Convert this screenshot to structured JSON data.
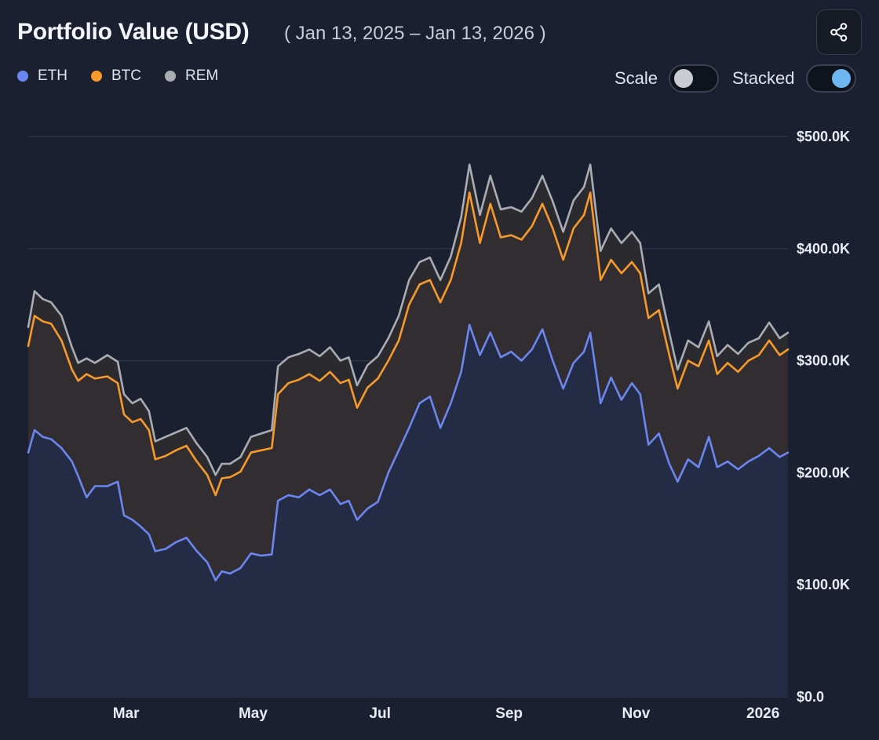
{
  "header": {
    "title": "Portfolio Value (USD)",
    "date_range": "( Jan 13, 2025 – Jan 13, 2026 )",
    "share_icon": "share-icon"
  },
  "legend": [
    {
      "label": "ETH",
      "color": "#6b86ee"
    },
    {
      "label": "BTC",
      "color": "#f79a2b"
    },
    {
      "label": "REM",
      "color": "#a9acb3"
    }
  ],
  "toggles": {
    "scale": {
      "label": "Scale",
      "on": false
    },
    "stacked": {
      "label": "Stacked",
      "on": true
    }
  },
  "chart_data": {
    "type": "area",
    "stacked": true,
    "ylim": [
      0,
      500000
    ],
    "yticks": [
      {
        "value": 0,
        "label": "$0.0"
      },
      {
        "value": 100000,
        "label": "$100.0K"
      },
      {
        "value": 200000,
        "label": "$200.0K"
      },
      {
        "value": 300000,
        "label": "$300.0K"
      },
      {
        "value": 400000,
        "label": "$400.0K"
      },
      {
        "value": 500000,
        "label": "$500.0K"
      }
    ],
    "xlim": [
      "2025-01-13",
      "2026-01-13"
    ],
    "xticks": [
      {
        "date": "2025-03-01",
        "label": "Mar"
      },
      {
        "date": "2025-05-01",
        "label": "May"
      },
      {
        "date": "2025-07-01",
        "label": "Jul"
      },
      {
        "date": "2025-09-01",
        "label": "Sep"
      },
      {
        "date": "2025-11-01",
        "label": "Nov"
      },
      {
        "date": "2026-01-01",
        "label": "2026"
      }
    ],
    "grid": true,
    "legend_position": "top-left",
    "series": [
      {
        "name": "ETH",
        "color": "#6b86ee",
        "fill": "#232b45",
        "points": [
          [
            "2025-01-13",
            218000
          ],
          [
            "2025-01-16",
            238000
          ],
          [
            "2025-01-20",
            232000
          ],
          [
            "2025-01-24",
            230000
          ],
          [
            "2025-01-29",
            222000
          ],
          [
            "2025-02-03",
            210000
          ],
          [
            "2025-02-06",
            197000
          ],
          [
            "2025-02-10",
            178000
          ],
          [
            "2025-02-14",
            188000
          ],
          [
            "2025-02-20",
            188000
          ],
          [
            "2025-02-25",
            192000
          ],
          [
            "2025-02-28",
            162000
          ],
          [
            "2025-03-04",
            158000
          ],
          [
            "2025-03-08",
            152000
          ],
          [
            "2025-03-12",
            145000
          ],
          [
            "2025-03-15",
            130000
          ],
          [
            "2025-03-20",
            132000
          ],
          [
            "2025-03-25",
            138000
          ],
          [
            "2025-03-30",
            142000
          ],
          [
            "2025-04-04",
            130000
          ],
          [
            "2025-04-09",
            120000
          ],
          [
            "2025-04-13",
            104000
          ],
          [
            "2025-04-16",
            112000
          ],
          [
            "2025-04-20",
            110000
          ],
          [
            "2025-04-25",
            115000
          ],
          [
            "2025-04-30",
            128000
          ],
          [
            "2025-05-05",
            126000
          ],
          [
            "2025-05-10",
            127000
          ],
          [
            "2025-05-13",
            175000
          ],
          [
            "2025-05-18",
            180000
          ],
          [
            "2025-05-23",
            178000
          ],
          [
            "2025-05-28",
            185000
          ],
          [
            "2025-06-02",
            180000
          ],
          [
            "2025-06-07",
            185000
          ],
          [
            "2025-06-12",
            172000
          ],
          [
            "2025-06-16",
            175000
          ],
          [
            "2025-06-20",
            158000
          ],
          [
            "2025-06-25",
            168000
          ],
          [
            "2025-06-30",
            174000
          ],
          [
            "2025-07-05",
            200000
          ],
          [
            "2025-07-10",
            220000
          ],
          [
            "2025-07-15",
            240000
          ],
          [
            "2025-07-20",
            262000
          ],
          [
            "2025-07-25",
            268000
          ],
          [
            "2025-07-30",
            240000
          ],
          [
            "2025-08-04",
            262000
          ],
          [
            "2025-08-09",
            290000
          ],
          [
            "2025-08-13",
            332000
          ],
          [
            "2025-08-18",
            305000
          ],
          [
            "2025-08-23",
            325000
          ],
          [
            "2025-08-28",
            303000
          ],
          [
            "2025-09-02",
            308000
          ],
          [
            "2025-09-07",
            300000
          ],
          [
            "2025-09-12",
            310000
          ],
          [
            "2025-09-17",
            328000
          ],
          [
            "2025-09-22",
            300000
          ],
          [
            "2025-09-27",
            275000
          ],
          [
            "2025-10-02",
            298000
          ],
          [
            "2025-10-07",
            308000
          ],
          [
            "2025-10-10",
            325000
          ],
          [
            "2025-10-15",
            262000
          ],
          [
            "2025-10-20",
            285000
          ],
          [
            "2025-10-25",
            265000
          ],
          [
            "2025-10-30",
            280000
          ],
          [
            "2025-11-03",
            270000
          ],
          [
            "2025-11-07",
            225000
          ],
          [
            "2025-11-12",
            235000
          ],
          [
            "2025-11-17",
            208000
          ],
          [
            "2025-11-21",
            192000
          ],
          [
            "2025-11-26",
            212000
          ],
          [
            "2025-12-01",
            205000
          ],
          [
            "2025-12-06",
            232000
          ],
          [
            "2025-12-10",
            205000
          ],
          [
            "2025-12-15",
            210000
          ],
          [
            "2025-12-20",
            203000
          ],
          [
            "2025-12-25",
            210000
          ],
          [
            "2025-12-30",
            215000
          ],
          [
            "2026-01-04",
            222000
          ],
          [
            "2026-01-09",
            214000
          ],
          [
            "2026-01-13",
            218000
          ]
        ]
      },
      {
        "name": "BTC",
        "color": "#f79a2b",
        "fill": "#312d31",
        "points": [
          [
            "2025-01-13",
            313000
          ],
          [
            "2025-01-16",
            340000
          ],
          [
            "2025-01-20",
            335000
          ],
          [
            "2025-01-24",
            333000
          ],
          [
            "2025-01-29",
            318000
          ],
          [
            "2025-02-03",
            292000
          ],
          [
            "2025-02-06",
            282000
          ],
          [
            "2025-02-10",
            288000
          ],
          [
            "2025-02-14",
            284000
          ],
          [
            "2025-02-20",
            286000
          ],
          [
            "2025-02-25",
            280000
          ],
          [
            "2025-02-28",
            252000
          ],
          [
            "2025-03-04",
            245000
          ],
          [
            "2025-03-08",
            248000
          ],
          [
            "2025-03-12",
            238000
          ],
          [
            "2025-03-15",
            212000
          ],
          [
            "2025-03-20",
            215000
          ],
          [
            "2025-03-25",
            220000
          ],
          [
            "2025-03-30",
            224000
          ],
          [
            "2025-04-04",
            210000
          ],
          [
            "2025-04-09",
            198000
          ],
          [
            "2025-04-13",
            180000
          ],
          [
            "2025-04-16",
            195000
          ],
          [
            "2025-04-20",
            196000
          ],
          [
            "2025-04-25",
            201000
          ],
          [
            "2025-04-30",
            218000
          ],
          [
            "2025-05-05",
            220000
          ],
          [
            "2025-05-10",
            222000
          ],
          [
            "2025-05-13",
            270000
          ],
          [
            "2025-05-18",
            280000
          ],
          [
            "2025-05-23",
            283000
          ],
          [
            "2025-05-28",
            288000
          ],
          [
            "2025-06-02",
            282000
          ],
          [
            "2025-06-07",
            290000
          ],
          [
            "2025-06-12",
            280000
          ],
          [
            "2025-06-16",
            283000
          ],
          [
            "2025-06-20",
            258000
          ],
          [
            "2025-06-25",
            276000
          ],
          [
            "2025-06-30",
            284000
          ],
          [
            "2025-07-05",
            300000
          ],
          [
            "2025-07-10",
            318000
          ],
          [
            "2025-07-15",
            350000
          ],
          [
            "2025-07-20",
            368000
          ],
          [
            "2025-07-25",
            372000
          ],
          [
            "2025-07-30",
            352000
          ],
          [
            "2025-08-04",
            372000
          ],
          [
            "2025-08-09",
            405000
          ],
          [
            "2025-08-13",
            450000
          ],
          [
            "2025-08-18",
            405000
          ],
          [
            "2025-08-23",
            440000
          ],
          [
            "2025-08-28",
            410000
          ],
          [
            "2025-09-02",
            412000
          ],
          [
            "2025-09-07",
            408000
          ],
          [
            "2025-09-12",
            420000
          ],
          [
            "2025-09-17",
            440000
          ],
          [
            "2025-09-22",
            418000
          ],
          [
            "2025-09-27",
            390000
          ],
          [
            "2025-10-02",
            418000
          ],
          [
            "2025-10-07",
            430000
          ],
          [
            "2025-10-10",
            450000
          ],
          [
            "2025-10-15",
            372000
          ],
          [
            "2025-10-20",
            390000
          ],
          [
            "2025-10-25",
            378000
          ],
          [
            "2025-10-30",
            388000
          ],
          [
            "2025-11-03",
            378000
          ],
          [
            "2025-11-07",
            338000
          ],
          [
            "2025-11-12",
            345000
          ],
          [
            "2025-11-17",
            305000
          ],
          [
            "2025-11-21",
            275000
          ],
          [
            "2025-11-26",
            300000
          ],
          [
            "2025-12-01",
            295000
          ],
          [
            "2025-12-06",
            318000
          ],
          [
            "2025-12-10",
            288000
          ],
          [
            "2025-12-15",
            298000
          ],
          [
            "2025-12-20",
            290000
          ],
          [
            "2025-12-25",
            300000
          ],
          [
            "2025-12-30",
            305000
          ],
          [
            "2026-01-04",
            318000
          ],
          [
            "2026-01-09",
            305000
          ],
          [
            "2026-01-13",
            310000
          ]
        ]
      },
      {
        "name": "REM",
        "color": "#a9acb3",
        "fill": "#2b2b2f",
        "points": [
          [
            "2025-01-13",
            330000
          ],
          [
            "2025-01-16",
            362000
          ],
          [
            "2025-01-20",
            355000
          ],
          [
            "2025-01-24",
            352000
          ],
          [
            "2025-01-29",
            340000
          ],
          [
            "2025-02-03",
            312000
          ],
          [
            "2025-02-06",
            298000
          ],
          [
            "2025-02-10",
            302000
          ],
          [
            "2025-02-14",
            298000
          ],
          [
            "2025-02-20",
            305000
          ],
          [
            "2025-02-25",
            299000
          ],
          [
            "2025-02-28",
            270000
          ],
          [
            "2025-03-04",
            262000
          ],
          [
            "2025-03-08",
            266000
          ],
          [
            "2025-03-12",
            255000
          ],
          [
            "2025-03-15",
            228000
          ],
          [
            "2025-03-20",
            232000
          ],
          [
            "2025-03-25",
            236000
          ],
          [
            "2025-03-30",
            240000
          ],
          [
            "2025-04-04",
            226000
          ],
          [
            "2025-04-09",
            214000
          ],
          [
            "2025-04-13",
            198000
          ],
          [
            "2025-04-16",
            208000
          ],
          [
            "2025-04-20",
            208000
          ],
          [
            "2025-04-25",
            214000
          ],
          [
            "2025-04-30",
            232000
          ],
          [
            "2025-05-05",
            235000
          ],
          [
            "2025-05-10",
            238000
          ],
          [
            "2025-05-13",
            295000
          ],
          [
            "2025-05-18",
            303000
          ],
          [
            "2025-05-23",
            306000
          ],
          [
            "2025-05-28",
            310000
          ],
          [
            "2025-06-02",
            304000
          ],
          [
            "2025-06-07",
            312000
          ],
          [
            "2025-06-12",
            300000
          ],
          [
            "2025-06-16",
            303000
          ],
          [
            "2025-06-20",
            278000
          ],
          [
            "2025-06-25",
            296000
          ],
          [
            "2025-06-30",
            304000
          ],
          [
            "2025-07-05",
            320000
          ],
          [
            "2025-07-10",
            340000
          ],
          [
            "2025-07-15",
            372000
          ],
          [
            "2025-07-20",
            388000
          ],
          [
            "2025-07-25",
            392000
          ],
          [
            "2025-07-30",
            372000
          ],
          [
            "2025-08-04",
            393000
          ],
          [
            "2025-08-09",
            428000
          ],
          [
            "2025-08-13",
            475000
          ],
          [
            "2025-08-18",
            430000
          ],
          [
            "2025-08-23",
            465000
          ],
          [
            "2025-08-28",
            435000
          ],
          [
            "2025-09-02",
            437000
          ],
          [
            "2025-09-07",
            433000
          ],
          [
            "2025-09-12",
            445000
          ],
          [
            "2025-09-17",
            465000
          ],
          [
            "2025-09-22",
            442000
          ],
          [
            "2025-09-27",
            415000
          ],
          [
            "2025-10-02",
            443000
          ],
          [
            "2025-10-07",
            455000
          ],
          [
            "2025-10-10",
            475000
          ],
          [
            "2025-10-15",
            398000
          ],
          [
            "2025-10-20",
            418000
          ],
          [
            "2025-10-25",
            405000
          ],
          [
            "2025-10-30",
            415000
          ],
          [
            "2025-11-03",
            405000
          ],
          [
            "2025-11-07",
            360000
          ],
          [
            "2025-11-12",
            368000
          ],
          [
            "2025-11-17",
            325000
          ],
          [
            "2025-11-21",
            292000
          ],
          [
            "2025-11-26",
            318000
          ],
          [
            "2025-12-01",
            312000
          ],
          [
            "2025-12-06",
            335000
          ],
          [
            "2025-12-10",
            304000
          ],
          [
            "2025-12-15",
            314000
          ],
          [
            "2025-12-20",
            306000
          ],
          [
            "2025-12-25",
            316000
          ],
          [
            "2025-12-30",
            320000
          ],
          [
            "2026-01-04",
            334000
          ],
          [
            "2026-01-09",
            320000
          ],
          [
            "2026-01-13",
            325000
          ]
        ]
      }
    ]
  }
}
